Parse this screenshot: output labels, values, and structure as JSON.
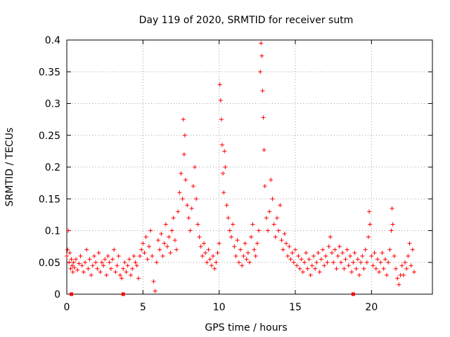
{
  "chart_data": {
    "type": "scatter",
    "title": "Day 119 of 2020, SRMTID for receiver sutm",
    "xlabel": "GPS time / hours",
    "ylabel": "SRMTID / TECUs",
    "xlim": [
      0,
      24
    ],
    "ylim": [
      0,
      0.4
    ],
    "xticks": [
      0,
      5,
      10,
      15,
      20
    ],
    "yticks": [
      0,
      0.05,
      0.1,
      0.15,
      0.2,
      0.25,
      0.3,
      0.35,
      0.4
    ],
    "xtick_labels": [
      "0",
      "5",
      "10",
      "15",
      "20"
    ],
    "ytick_labels": [
      "0",
      "0.05",
      "0.1",
      "0.15",
      "0.2",
      "0.25",
      "0.3",
      "0.35",
      "0.4"
    ],
    "grid": true,
    "marker": "+",
    "color": "#ff0000",
    "points": [
      [
        0.0,
        0.06
      ],
      [
        0.05,
        0.07
      ],
      [
        0.1,
        0.1
      ],
      [
        0.15,
        0.05
      ],
      [
        0.2,
        0.065
      ],
      [
        0.25,
        0.04
      ],
      [
        0.3,
        0.055
      ],
      [
        0.35,
        0.045
      ],
      [
        0.4,
        0.035
      ],
      [
        0.45,
        0.05
      ],
      [
        0.5,
        0.042
      ],
      [
        0.6,
        0.055
      ],
      [
        0.7,
        0.038
      ],
      [
        0.8,
        0.048
      ],
      [
        0.9,
        0.06
      ],
      [
        1.0,
        0.045
      ],
      [
        1.1,
        0.035
      ],
      [
        1.2,
        0.05
      ],
      [
        1.3,
        0.07
      ],
      [
        1.4,
        0.04
      ],
      [
        1.5,
        0.055
      ],
      [
        1.6,
        0.03
      ],
      [
        1.7,
        0.045
      ],
      [
        1.8,
        0.06
      ],
      [
        1.9,
        0.05
      ],
      [
        2.0,
        0.04
      ],
      [
        2.1,
        0.065
      ],
      [
        2.2,
        0.035
      ],
      [
        2.3,
        0.05
      ],
      [
        2.4,
        0.045
      ],
      [
        2.5,
        0.055
      ],
      [
        2.6,
        0.03
      ],
      [
        2.7,
        0.06
      ],
      [
        2.8,
        0.05
      ],
      [
        2.9,
        0.04
      ],
      [
        3.0,
        0.055
      ],
      [
        3.1,
        0.07
      ],
      [
        3.2,
        0.035
      ],
      [
        3.3,
        0.045
      ],
      [
        3.4,
        0.06
      ],
      [
        3.5,
        0.03
      ],
      [
        3.6,
        0.025
      ],
      [
        3.7,
        0.04
      ],
      [
        3.8,
        0.05
      ],
      [
        3.9,
        0.035
      ],
      [
        4.0,
        0.045
      ],
      [
        4.1,
        0.055
      ],
      [
        4.2,
        0.03
      ],
      [
        4.3,
        0.04
      ],
      [
        4.4,
        0.06
      ],
      [
        4.5,
        0.05
      ],
      [
        4.6,
        0.045
      ],
      [
        4.7,
        0.025
      ],
      [
        4.8,
        0.06
      ],
      [
        4.9,
        0.07
      ],
      [
        5.0,
        0.08
      ],
      [
        5.1,
        0.065
      ],
      [
        5.2,
        0.09
      ],
      [
        5.3,
        0.055
      ],
      [
        5.4,
        0.075
      ],
      [
        5.5,
        0.1
      ],
      [
        5.6,
        0.06
      ],
      [
        5.7,
        0.02
      ],
      [
        5.8,
        0.005
      ],
      [
        5.9,
        0.05
      ],
      [
        6.0,
        0.085
      ],
      [
        6.1,
        0.07
      ],
      [
        6.2,
        0.095
      ],
      [
        6.3,
        0.06
      ],
      [
        6.4,
        0.08
      ],
      [
        6.5,
        0.11
      ],
      [
        6.6,
        0.075
      ],
      [
        6.7,
        0.09
      ],
      [
        6.8,
        0.065
      ],
      [
        6.9,
        0.1
      ],
      [
        7.0,
        0.12
      ],
      [
        7.1,
        0.085
      ],
      [
        7.2,
        0.07
      ],
      [
        7.3,
        0.13
      ],
      [
        7.4,
        0.16
      ],
      [
        7.5,
        0.19
      ],
      [
        7.6,
        0.15
      ],
      [
        7.65,
        0.275
      ],
      [
        7.7,
        0.22
      ],
      [
        7.75,
        0.25
      ],
      [
        7.8,
        0.18
      ],
      [
        7.9,
        0.14
      ],
      [
        8.0,
        0.12
      ],
      [
        8.1,
        0.1
      ],
      [
        8.2,
        0.135
      ],
      [
        8.3,
        0.17
      ],
      [
        8.4,
        0.2
      ],
      [
        8.5,
        0.15
      ],
      [
        8.6,
        0.11
      ],
      [
        8.7,
        0.09
      ],
      [
        8.8,
        0.075
      ],
      [
        8.9,
        0.06
      ],
      [
        9.0,
        0.08
      ],
      [
        9.1,
        0.065
      ],
      [
        9.2,
        0.05
      ],
      [
        9.3,
        0.07
      ],
      [
        9.4,
        0.055
      ],
      [
        9.5,
        0.045
      ],
      [
        9.6,
        0.06
      ],
      [
        9.7,
        0.04
      ],
      [
        9.8,
        0.05
      ],
      [
        9.9,
        0.065
      ],
      [
        10.0,
        0.08
      ],
      [
        10.05,
        0.33
      ],
      [
        10.1,
        0.305
      ],
      [
        10.15,
        0.275
      ],
      [
        10.2,
        0.235
      ],
      [
        10.25,
        0.19
      ],
      [
        10.3,
        0.16
      ],
      [
        10.35,
        0.225
      ],
      [
        10.4,
        0.2
      ],
      [
        10.5,
        0.14
      ],
      [
        10.6,
        0.12
      ],
      [
        10.7,
        0.1
      ],
      [
        10.8,
        0.09
      ],
      [
        10.9,
        0.11
      ],
      [
        11.0,
        0.075
      ],
      [
        11.1,
        0.06
      ],
      [
        11.2,
        0.085
      ],
      [
        11.3,
        0.05
      ],
      [
        11.4,
        0.07
      ],
      [
        11.5,
        0.045
      ],
      [
        11.6,
        0.06
      ],
      [
        11.7,
        0.08
      ],
      [
        11.8,
        0.055
      ],
      [
        11.9,
        0.065
      ],
      [
        12.0,
        0.05
      ],
      [
        12.1,
        0.09
      ],
      [
        12.2,
        0.11
      ],
      [
        12.3,
        0.07
      ],
      [
        12.4,
        0.06
      ],
      [
        12.5,
        0.08
      ],
      [
        12.6,
        0.1
      ],
      [
        12.7,
        0.35
      ],
      [
        12.75,
        0.395
      ],
      [
        12.8,
        0.375
      ],
      [
        12.85,
        0.32
      ],
      [
        12.9,
        0.278
      ],
      [
        12.95,
        0.227
      ],
      [
        13.0,
        0.17
      ],
      [
        13.1,
        0.12
      ],
      [
        13.2,
        0.1
      ],
      [
        13.3,
        0.13
      ],
      [
        13.4,
        0.18
      ],
      [
        13.5,
        0.15
      ],
      [
        13.6,
        0.11
      ],
      [
        13.7,
        0.09
      ],
      [
        13.8,
        0.12
      ],
      [
        13.9,
        0.1
      ],
      [
        14.0,
        0.14
      ],
      [
        14.1,
        0.085
      ],
      [
        14.2,
        0.07
      ],
      [
        14.3,
        0.095
      ],
      [
        14.4,
        0.08
      ],
      [
        14.5,
        0.06
      ],
      [
        14.6,
        0.075
      ],
      [
        14.7,
        0.055
      ],
      [
        14.8,
        0.065
      ],
      [
        14.9,
        0.05
      ],
      [
        15.0,
        0.07
      ],
      [
        15.1,
        0.045
      ],
      [
        15.2,
        0.06
      ],
      [
        15.3,
        0.04
      ],
      [
        15.4,
        0.055
      ],
      [
        15.5,
        0.035
      ],
      [
        15.6,
        0.05
      ],
      [
        15.7,
        0.065
      ],
      [
        15.8,
        0.04
      ],
      [
        15.9,
        0.055
      ],
      [
        16.0,
        0.03
      ],
      [
        16.1,
        0.045
      ],
      [
        16.2,
        0.06
      ],
      [
        16.3,
        0.04
      ],
      [
        16.4,
        0.05
      ],
      [
        16.5,
        0.065
      ],
      [
        16.6,
        0.035
      ],
      [
        16.7,
        0.055
      ],
      [
        16.8,
        0.07
      ],
      [
        16.9,
        0.045
      ],
      [
        17.0,
        0.06
      ],
      [
        17.1,
        0.05
      ],
      [
        17.2,
        0.075
      ],
      [
        17.3,
        0.09
      ],
      [
        17.4,
        0.065
      ],
      [
        17.5,
        0.05
      ],
      [
        17.6,
        0.07
      ],
      [
        17.7,
        0.04
      ],
      [
        17.8,
        0.06
      ],
      [
        17.9,
        0.075
      ],
      [
        18.0,
        0.05
      ],
      [
        18.1,
        0.065
      ],
      [
        18.2,
        0.04
      ],
      [
        18.3,
        0.055
      ],
      [
        18.4,
        0.07
      ],
      [
        18.5,
        0.045
      ],
      [
        18.6,
        0.06
      ],
      [
        18.7,
        0.035
      ],
      [
        18.8,
        0.05
      ],
      [
        18.9,
        0.065
      ],
      [
        19.0,
        0.04
      ],
      [
        19.1,
        0.055
      ],
      [
        19.2,
        0.03
      ],
      [
        19.3,
        0.05
      ],
      [
        19.4,
        0.06
      ],
      [
        19.5,
        0.04
      ],
      [
        19.6,
        0.07
      ],
      [
        19.7,
        0.05
      ],
      [
        19.8,
        0.09
      ],
      [
        19.85,
        0.13
      ],
      [
        19.9,
        0.11
      ],
      [
        20.0,
        0.06
      ],
      [
        20.1,
        0.045
      ],
      [
        20.2,
        0.065
      ],
      [
        20.3,
        0.04
      ],
      [
        20.4,
        0.055
      ],
      [
        20.5,
        0.035
      ],
      [
        20.6,
        0.05
      ],
      [
        20.7,
        0.065
      ],
      [
        20.8,
        0.04
      ],
      [
        20.9,
        0.055
      ],
      [
        21.0,
        0.03
      ],
      [
        21.1,
        0.05
      ],
      [
        21.2,
        0.07
      ],
      [
        21.3,
        0.1
      ],
      [
        21.35,
        0.135
      ],
      [
        21.4,
        0.11
      ],
      [
        21.5,
        0.06
      ],
      [
        21.6,
        0.04
      ],
      [
        21.7,
        0.025
      ],
      [
        21.8,
        0.015
      ],
      [
        21.9,
        0.03
      ],
      [
        22.0,
        0.045
      ],
      [
        22.1,
        0.03
      ],
      [
        22.2,
        0.05
      ],
      [
        22.3,
        0.04
      ],
      [
        22.4,
        0.06
      ],
      [
        22.5,
        0.08
      ],
      [
        22.6,
        0.045
      ],
      [
        22.7,
        0.07
      ],
      [
        22.8,
        0.035
      ]
    ],
    "bottom_markers": [
      0.3,
      3.7,
      18.8
    ]
  }
}
